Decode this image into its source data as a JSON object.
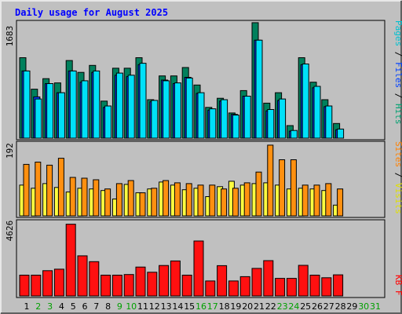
{
  "chart_data": {
    "type": "bar",
    "title": "Daily usage for August 2025",
    "days": [
      "1",
      "2",
      "3",
      "4",
      "5",
      "6",
      "7",
      "8",
      "9",
      "10",
      "11",
      "12",
      "13",
      "14",
      "15",
      "16",
      "17",
      "18",
      "19",
      "20",
      "21",
      "22",
      "23",
      "24",
      "25",
      "26",
      "27",
      "28",
      "29",
      "30",
      "31"
    ],
    "weekend_days": [
      2,
      3,
      9,
      10,
      16,
      17,
      23,
      24,
      30,
      31
    ],
    "panels": [
      {
        "id": "hits",
        "max_label": "1683",
        "ylim": [
          0,
          1683
        ],
        "axis_labels": [
          {
            "text": "Pages",
            "color": "#00c0d0"
          },
          {
            "text": "Files",
            "color": "#0040ff"
          },
          {
            "text": "Hits",
            "color": "#00a070"
          }
        ],
        "series": [
          {
            "name": "Hits",
            "color": "#00805c",
            "values": [
              1150,
              700,
              850,
              790,
              1110,
              940,
              1040,
              530,
              1000,
              1000,
              1150,
              550,
              890,
              890,
              1010,
              760,
              440,
              570,
              360,
              680,
              1650,
              500,
              650,
              180,
              1150,
              800,
              550,
              210,
              null,
              null,
              null
            ]
          },
          {
            "name": "Files",
            "color": "#0040ff",
            "values": [
              960,
              590,
              780,
              650,
              960,
              800,
              940,
              440,
              900,
              880,
              1050,
              520,
              830,
              780,
              870,
              640,
              400,
              530,
              340,
              600,
              1400,
              390,
              540,
              100,
              1050,
              720,
              450,
              120,
              null,
              null,
              null
            ]
          },
          {
            "name": "Pages",
            "color": "#00e0f8",
            "values": [
              960,
              560,
              780,
              650,
              960,
              820,
              960,
              460,
              930,
              900,
              1070,
              540,
              820,
              790,
              860,
              650,
              420,
              550,
              330,
              600,
              1400,
              410,
              560,
              110,
              1060,
              740,
              460,
              130,
              null,
              null,
              null
            ]
          }
        ]
      },
      {
        "id": "visits",
        "max_label": "192",
        "ylim": [
          0,
          192
        ],
        "axis_labels": [
          {
            "text": "Sites",
            "color": "#ff8000"
          },
          {
            "text": "Visits",
            "color": "#ffff00"
          }
        ],
        "series": [
          {
            "name": "Visits",
            "color": "#ffff40",
            "values": [
              80,
              72,
              84,
              74,
              62,
              72,
              70,
              66,
              44,
              82,
              60,
              70,
              88,
              80,
              68,
              72,
              50,
              76,
              90,
              80,
              84,
              86,
              80,
              70,
              72,
              70,
              66,
              28,
              null,
              null,
              null
            ]
          },
          {
            "name": "Sites",
            "color": "#ff9010",
            "values": [
              134,
              140,
              132,
              150,
              100,
              98,
              94,
              70,
              84,
              92,
              60,
              72,
              92,
              86,
              84,
              80,
              80,
              70,
              72,
              86,
              114,
              184,
              146,
              146,
              80,
              80,
              84,
              70,
              null,
              null,
              null
            ]
          }
        ]
      },
      {
        "id": "kbytes",
        "max_label": "4626",
        "ylim": [
          0,
          4626
        ],
        "axis_labels": [
          {
            "text": "KB F",
            "color": "#ff0000"
          }
        ],
        "series": [
          {
            "name": "KB F",
            "color": "#ff1010",
            "values": [
              1290,
              1290,
              1570,
              1660,
              4450,
              2490,
              2130,
              1290,
              1290,
              1330,
              1790,
              1470,
              1890,
              2170,
              1290,
              3410,
              930,
              1880,
              930,
              1200,
              1710,
              2190,
              1090,
              1090,
              1900,
              1290,
              1130,
              1310,
              null,
              null,
              null
            ]
          }
        ]
      }
    ]
  },
  "colors": {
    "page_bg": "#c0c0c0",
    "panel_bg": "#c0c0c0",
    "title_color": "#0000ff",
    "weekday_label": "#000000",
    "weekend_label": "#00a000"
  }
}
